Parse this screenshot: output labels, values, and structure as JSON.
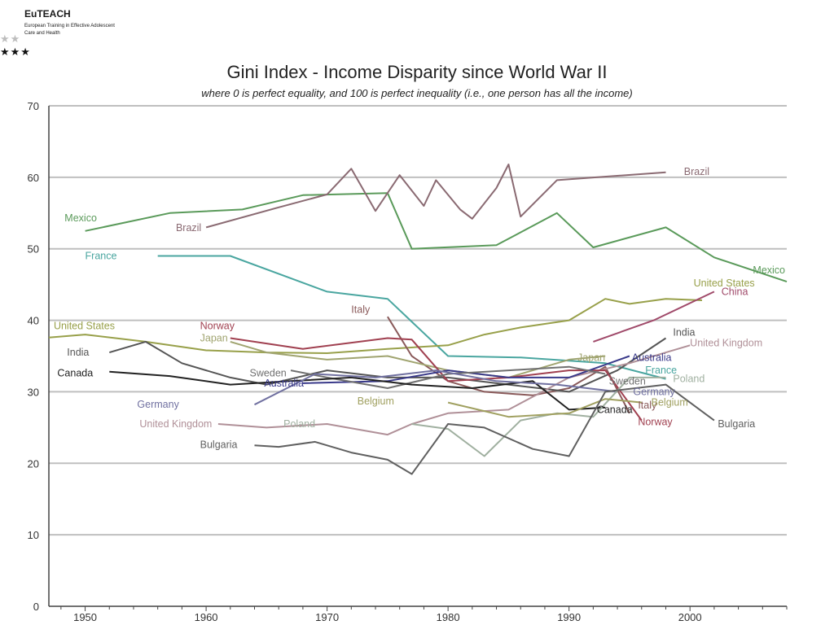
{
  "logo": {
    "name": "EuTEACH",
    "line1": "European Training in Effective Adolescent",
    "line2": "Care and Health"
  },
  "chart_data": {
    "type": "line",
    "title": "Gini Index - Income Disparity since World War II",
    "subtitle": "where 0 is perfect equality, and 100 is perfect inequality (i.e., one person has all the income)",
    "xlabel": "",
    "ylabel": "",
    "xlim": [
      1947,
      2008
    ],
    "ylim": [
      0,
      70
    ],
    "xticks": [
      1950,
      1960,
      1970,
      1980,
      1990,
      2000
    ],
    "yticks": [
      0,
      10,
      20,
      30,
      40,
      50,
      60,
      70
    ],
    "grid": true,
    "series": [
      {
        "name": "Mexico",
        "color": "#5a9a5a",
        "x": [
          1950,
          1957,
          1963,
          1968,
          1975,
          1977,
          1984,
          1989,
          1992,
          1998,
          2002,
          2008
        ],
        "y": [
          52.5,
          55,
          55.5,
          57.5,
          57.8,
          50,
          50.5,
          55,
          50.2,
          53,
          48.8,
          45.4
        ],
        "labels": [
          {
            "text": "Mexico",
            "x": 1948.3,
            "y": 54.3,
            "anchor": "start"
          },
          {
            "text": "Mexico",
            "x": 2005.2,
            "y": 47,
            "anchor": "start"
          }
        ]
      },
      {
        "name": "Brazil",
        "color": "#8a6a72",
        "x": [
          1960,
          1966,
          1970,
          1972,
          1974,
          1976,
          1978,
          1979,
          1981,
          1982,
          1984,
          1985,
          1986,
          1989,
          1998
        ],
        "y": [
          53,
          55.8,
          57.6,
          61.2,
          55.3,
          60.3,
          56,
          59.6,
          55.5,
          54.2,
          58.5,
          61.8,
          54.5,
          59.6,
          60.7
        ],
        "labels": [
          {
            "text": "Brazil",
            "x": 1957.5,
            "y": 52.9,
            "anchor": "start"
          },
          {
            "text": "Brazil",
            "x": 1999.5,
            "y": 60.8,
            "anchor": "start"
          }
        ]
      },
      {
        "name": "France",
        "color": "#4aa6a0",
        "x": [
          1956,
          1962,
          1970,
          1975,
          1980,
          1986,
          1993,
          1998
        ],
        "y": [
          49,
          49,
          44,
          43,
          35,
          34.8,
          34,
          31.8
        ],
        "labels": [
          {
            "text": "France",
            "x": 1950,
            "y": 49,
            "anchor": "start"
          },
          {
            "text": "France",
            "x": 1996.3,
            "y": 33,
            "anchor": "start"
          }
        ]
      },
      {
        "name": "United States",
        "color": "#98a04a",
        "x": [
          1947,
          1950,
          1955,
          1960,
          1965,
          1970,
          1975,
          1980,
          1983,
          1986,
          1990,
          1993,
          1995,
          1998,
          2001
        ],
        "y": [
          37.6,
          38,
          37,
          35.8,
          35.5,
          35.4,
          36,
          36.5,
          38,
          39,
          40,
          43,
          42.3,
          43,
          42.8
        ],
        "labels": [
          {
            "text": "United States",
            "x": 1947.4,
            "y": 39.2,
            "anchor": "start"
          },
          {
            "text": "United States",
            "x": 2000.3,
            "y": 45.2,
            "anchor": "start"
          }
        ]
      },
      {
        "name": "China",
        "color": "#a04a6a",
        "x": [
          1992,
          1997,
          2002
        ],
        "y": [
          37,
          40,
          44
        ],
        "labels": [
          {
            "text": "China",
            "x": 2002.6,
            "y": 44,
            "anchor": "start"
          }
        ]
      },
      {
        "name": "Italy",
        "color": "#8a5a5a",
        "x": [
          1975,
          1977,
          1980,
          1983,
          1987,
          1990,
          1993,
          1995
        ],
        "y": [
          40.5,
          35,
          31.5,
          30,
          29.5,
          30.5,
          33.5,
          27
        ],
        "labels": [
          {
            "text": "Italy",
            "x": 1972,
            "y": 41.5,
            "anchor": "start"
          },
          {
            "text": "Italy",
            "x": 1995.7,
            "y": 28.1,
            "anchor": "start"
          }
        ]
      },
      {
        "name": "India",
        "color": "#555555",
        "x": [
          1952,
          1955,
          1958,
          1962,
          1965,
          1970,
          1975,
          1980,
          1985,
          1990,
          1994,
          1998
        ],
        "y": [
          35.5,
          37,
          34,
          32,
          31,
          33,
          32,
          32,
          31,
          30,
          33,
          37.5
        ],
        "labels": [
          {
            "text": "India",
            "x": 1948.5,
            "y": 35.5,
            "anchor": "start"
          },
          {
            "text": "India",
            "x": 1998.6,
            "y": 38.3,
            "anchor": "start"
          }
        ]
      },
      {
        "name": "United Kingdom",
        "color": "#b09098",
        "x": [
          1961,
          1965,
          1970,
          1975,
          1977,
          1980,
          1985,
          1990,
          1995,
          2000
        ],
        "y": [
          25.5,
          25,
          25.5,
          24,
          25.5,
          27,
          27.5,
          32,
          34,
          36.5
        ],
        "labels": [
          {
            "text": "United Kingdom",
            "x": 1954.5,
            "y": 25.5,
            "anchor": "start"
          },
          {
            "text": "United Kingdom",
            "x": 2000,
            "y": 36.8,
            "anchor": "start"
          }
        ]
      },
      {
        "name": "Japan",
        "color": "#a0a470",
        "x": [
          1962,
          1965,
          1970,
          1975,
          1980,
          1985,
          1990,
          1993
        ],
        "y": [
          37,
          35.5,
          34.5,
          35,
          33,
          32,
          34.5,
          35
        ],
        "labels": [
          {
            "text": "Japan",
            "x": 1959.5,
            "y": 37.5,
            "anchor": "start"
          },
          {
            "text": "Japan",
            "x": 1990.7,
            "y": 34.8,
            "anchor": "start"
          }
        ]
      },
      {
        "name": "Norway",
        "color": "#a04050",
        "x": [
          1962,
          1968,
          1975,
          1977,
          1980,
          1985,
          1990,
          1993,
          1996
        ],
        "y": [
          37.5,
          36,
          37.5,
          37.3,
          31.5,
          32,
          33,
          33,
          26
        ],
        "labels": [
          {
            "text": "Norway",
            "x": 1959.5,
            "y": 39.2,
            "anchor": "start"
          },
          {
            "text": "Norway",
            "x": 1995.7,
            "y": 25.8,
            "anchor": "start"
          }
        ]
      },
      {
        "name": "Australia",
        "color": "#3a3a8a",
        "x": [
          1968,
          1975,
          1980,
          1985,
          1990,
          1995
        ],
        "y": [
          31.2,
          31.5,
          33,
          32,
          32,
          35
        ],
        "labels": [
          {
            "text": "Australia",
            "x": 1964.8,
            "y": 31.2,
            "anchor": "start"
          },
          {
            "text": "Australia",
            "x": 1995.2,
            "y": 34.8,
            "anchor": "start"
          }
        ]
      },
      {
        "name": "Sweden",
        "color": "#707070",
        "x": [
          1967,
          1970,
          1975,
          1980,
          1985,
          1990,
          1993
        ],
        "y": [
          33,
          32,
          30.5,
          32.5,
          33,
          33.5,
          32.5
        ],
        "labels": [
          {
            "text": "Sweden",
            "x": 1963.6,
            "y": 32.6,
            "anchor": "start"
          },
          {
            "text": "Sweden",
            "x": 1993.3,
            "y": 31.5,
            "anchor": "start"
          }
        ]
      },
      {
        "name": "Canada",
        "color": "#222222",
        "x": [
          1952,
          1957,
          1962,
          1967,
          1972,
          1977,
          1982,
          1987,
          1990,
          1993
        ],
        "y": [
          32.8,
          32.2,
          31,
          31.5,
          32,
          31,
          30.5,
          31.5,
          27.5,
          27.8
        ],
        "labels": [
          {
            "text": "Canada",
            "x": 1947.7,
            "y": 32.6,
            "anchor": "start"
          },
          {
            "text": "Canada",
            "x": 1992.3,
            "y": 27.5,
            "anchor": "start"
          }
        ]
      },
      {
        "name": "Germany",
        "color": "#7070a0",
        "x": [
          1964,
          1969,
          1974,
          1979,
          1984,
          1989,
          1994
        ],
        "y": [
          28.2,
          32.5,
          32,
          33,
          31.5,
          31,
          30
        ],
        "labels": [
          {
            "text": "Germany",
            "x": 1954.3,
            "y": 28.2,
            "anchor": "start"
          },
          {
            "text": "Germany",
            "x": 1995.3,
            "y": 30,
            "anchor": "start"
          }
        ]
      },
      {
        "name": "Poland",
        "color": "#a0b0a0",
        "x": [
          1977,
          1980,
          1983,
          1986,
          1989,
          1992,
          1995,
          1998
        ],
        "y": [
          25.5,
          24.8,
          21,
          26,
          27,
          26.5,
          32,
          32
        ],
        "labels": [
          {
            "text": "Poland",
            "x": 1966.4,
            "y": 25.5,
            "anchor": "start"
          },
          {
            "text": "Poland",
            "x": 1998.6,
            "y": 31.8,
            "anchor": "start"
          }
        ]
      },
      {
        "name": "Belgium",
        "color": "#a0a060",
        "x": [
          1980,
          1985,
          1990,
          1993,
          1996
        ],
        "y": [
          28.5,
          26.5,
          27,
          29,
          28.5
        ],
        "labels": [
          {
            "text": "Belgium",
            "x": 1972.5,
            "y": 28.7,
            "anchor": "start"
          },
          {
            "text": "Belgium",
            "x": 1996.8,
            "y": 28.5,
            "anchor": "start"
          }
        ]
      },
      {
        "name": "Bulgaria",
        "color": "#606060",
        "x": [
          1964,
          1966,
          1969,
          1972,
          1975,
          1977,
          1980,
          1983,
          1987,
          1990,
          1993,
          1998,
          2002
        ],
        "y": [
          22.5,
          22.3,
          23,
          21.5,
          20.5,
          18.5,
          25.5,
          25,
          22,
          21,
          30,
          31,
          26
        ],
        "labels": [
          {
            "text": "Bulgaria",
            "x": 1959.5,
            "y": 22.6,
            "anchor": "start"
          },
          {
            "text": "Bulgaria",
            "x": 2002.3,
            "y": 25.5,
            "anchor": "start"
          }
        ]
      }
    ]
  }
}
